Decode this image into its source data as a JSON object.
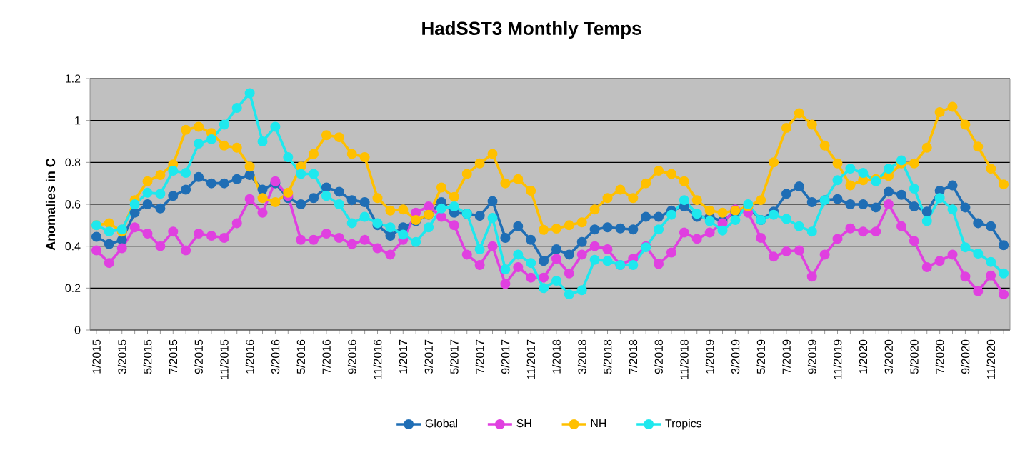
{
  "chart_data": {
    "type": "line",
    "title": "HadSST3 Monthly Temps",
    "ylabel": "Anomalies in C",
    "categories": [
      "1/2015",
      null,
      "3/2015",
      null,
      "5/2015",
      null,
      "7/2015",
      null,
      "9/2015",
      null,
      "11/2015",
      null,
      "1/2016",
      null,
      "3/2016",
      null,
      "5/2016",
      null,
      "7/2016",
      null,
      "9/2016",
      null,
      "11/2016",
      null,
      "1/2017",
      null,
      "3/2017",
      null,
      "5/2017",
      null,
      "7/2017",
      null,
      "9/2017",
      null,
      "11/2017",
      null,
      "1/2018",
      null,
      "3/2018",
      null,
      "5/2018",
      null,
      "7/2018",
      null,
      "9/2018",
      null,
      "11/2018",
      null,
      "1/2019",
      null,
      "3/2019",
      null,
      "5/2019",
      null,
      "7/2019",
      null,
      "9/2019",
      null,
      "11/2019",
      null,
      "1/2020",
      null,
      "3/2020",
      null,
      "5/2020",
      null,
      "7/2020",
      null,
      "9/2020",
      null,
      "11/2020",
      null
    ],
    "series": [
      {
        "name": "Global",
        "color": "#1f6eb5",
        "values": [
          0.445,
          0.41,
          0.43,
          0.56,
          0.6,
          0.58,
          0.64,
          0.67,
          0.73,
          0.7,
          0.7,
          0.72,
          0.74,
          0.67,
          0.7,
          0.63,
          0.6,
          0.63,
          0.68,
          0.66,
          0.62,
          0.61,
          0.5,
          0.45,
          0.49,
          0.52,
          0.55,
          0.61,
          0.56,
          0.555,
          0.545,
          0.615,
          0.44,
          0.495,
          0.43,
          0.33,
          0.385,
          0.36,
          0.42,
          0.48,
          0.49,
          0.485,
          0.48,
          0.54,
          0.54,
          0.57,
          0.59,
          0.54,
          0.54,
          0.52,
          0.565,
          0.59,
          0.525,
          0.565,
          0.65,
          0.685,
          0.61,
          0.62,
          0.625,
          0.6,
          0.6,
          0.585,
          0.66,
          0.645,
          0.59,
          0.565,
          0.665,
          0.69,
          0.585,
          0.51,
          0.495,
          0.405
        ]
      },
      {
        "name": "SH",
        "color": "#e040e0",
        "values": [
          0.38,
          0.32,
          0.39,
          0.49,
          0.46,
          0.4,
          0.47,
          0.38,
          0.46,
          0.45,
          0.44,
          0.51,
          0.625,
          0.56,
          0.71,
          0.64,
          0.43,
          0.43,
          0.46,
          0.44,
          0.41,
          0.43,
          0.39,
          0.36,
          0.43,
          0.56,
          0.59,
          0.54,
          0.5,
          0.36,
          0.31,
          0.4,
          0.22,
          0.3,
          0.25,
          0.25,
          0.34,
          0.27,
          0.36,
          0.4,
          0.385,
          0.31,
          0.34,
          0.4,
          0.315,
          0.37,
          0.465,
          0.435,
          0.465,
          0.51,
          0.575,
          0.56,
          0.44,
          0.35,
          0.375,
          0.38,
          0.255,
          0.36,
          0.435,
          0.485,
          0.47,
          0.47,
          0.6,
          0.495,
          0.425,
          0.3,
          0.33,
          0.36,
          0.255,
          0.185,
          0.26,
          0.17
        ]
      },
      {
        "name": "NH",
        "color": "#ffc000",
        "values": [
          0.5,
          0.51,
          0.47,
          0.62,
          0.71,
          0.74,
          0.79,
          0.955,
          0.97,
          0.94,
          0.88,
          0.87,
          0.78,
          0.63,
          0.61,
          0.655,
          0.78,
          0.84,
          0.93,
          0.92,
          0.84,
          0.825,
          0.63,
          0.57,
          0.575,
          0.525,
          0.55,
          0.68,
          0.635,
          0.745,
          0.795,
          0.84,
          0.7,
          0.72,
          0.665,
          0.478,
          0.484,
          0.5,
          0.514,
          0.575,
          0.63,
          0.67,
          0.63,
          0.7,
          0.76,
          0.745,
          0.71,
          0.62,
          0.57,
          0.56,
          0.57,
          0.59,
          0.62,
          0.8,
          0.965,
          1.035,
          0.98,
          0.88,
          0.795,
          0.69,
          0.715,
          0.72,
          0.735,
          0.795,
          0.795,
          0.87,
          1.04,
          1.065,
          0.98,
          0.875,
          0.77,
          0.695
        ]
      },
      {
        "name": "Tropics",
        "color": "#1ee8ee",
        "values": [
          0.5,
          0.47,
          0.48,
          0.6,
          0.655,
          0.65,
          0.76,
          0.75,
          0.89,
          0.91,
          0.98,
          1.06,
          1.13,
          0.9,
          0.97,
          0.825,
          0.745,
          0.745,
          0.64,
          0.6,
          0.51,
          0.54,
          0.51,
          0.49,
          0.455,
          0.42,
          0.49,
          0.58,
          0.59,
          0.555,
          0.385,
          0.535,
          0.29,
          0.36,
          0.32,
          0.2,
          0.235,
          0.17,
          0.19,
          0.335,
          0.33,
          0.31,
          0.31,
          0.395,
          0.48,
          0.55,
          0.62,
          0.555,
          0.52,
          0.475,
          0.525,
          0.6,
          0.525,
          0.55,
          0.53,
          0.495,
          0.47,
          0.62,
          0.715,
          0.77,
          0.75,
          0.71,
          0.77,
          0.81,
          0.675,
          0.52,
          0.63,
          0.575,
          0.395,
          0.365,
          0.325,
          0.27
        ]
      }
    ],
    "ylim": [
      0,
      1.2
    ],
    "yticks": [
      0,
      0.2,
      0.4,
      0.6,
      0.8,
      1,
      1.2
    ],
    "grid": "y",
    "legend": "bottom",
    "marker": "circle",
    "line_style": "solid"
  }
}
